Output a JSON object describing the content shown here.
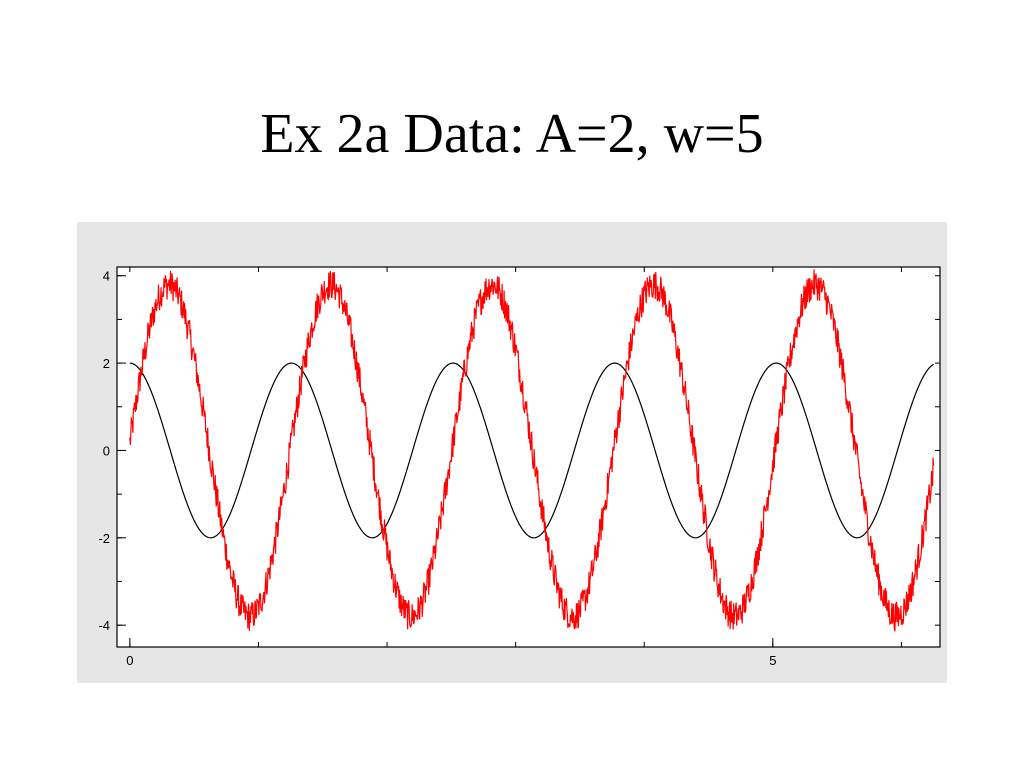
{
  "slide": {
    "title": "Ex 2a Data: A=2, w=5"
  },
  "chart_data": {
    "type": "line",
    "title": "",
    "xlabel": "",
    "ylabel": "",
    "xlim": [
      -0.1,
      6.3
    ],
    "ylim": [
      -4.5,
      4.2
    ],
    "grid": false,
    "legend": "none",
    "x_ticks": [
      {
        "value": 0,
        "label": "0"
      },
      {
        "value": 5,
        "label": "5"
      }
    ],
    "y_ticks": [
      {
        "value": 4,
        "label": "4"
      },
      {
        "value": 2,
        "label": "2"
      },
      {
        "value": 0,
        "label": "0"
      },
      {
        "value": -2,
        "label": "-2"
      },
      {
        "value": -4,
        "label": "-4"
      }
    ],
    "x_minor_step": 1,
    "y_minor_step": 1,
    "series": [
      {
        "color": "#000000",
        "function": "2*cos(5*x)",
        "x_range": [
          0,
          6.25
        ]
      },
      {
        "color": "#ff0000",
        "function": "3.8*sin(5*x + 0.05) + noise",
        "noise_amplitude": 0.35,
        "x_range": [
          0,
          6.25
        ]
      }
    ]
  }
}
